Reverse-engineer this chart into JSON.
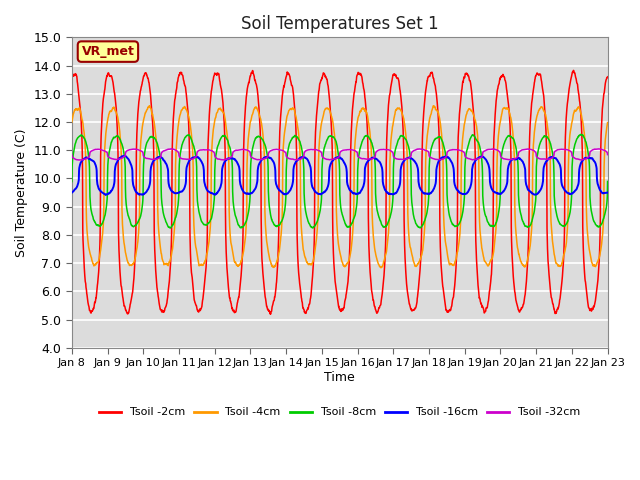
{
  "title": "Soil Temperatures Set 1",
  "xlabel": "Time",
  "ylabel": "Soil Temperature (C)",
  "ylim": [
    4.0,
    15.0
  ],
  "yticks": [
    4.0,
    5.0,
    6.0,
    7.0,
    8.0,
    9.0,
    10.0,
    11.0,
    12.0,
    13.0,
    14.0,
    15.0
  ],
  "xtick_labels": [
    "Jan 8",
    "Jan 9",
    "Jan 10",
    "Jan 11",
    "Jan 12",
    "Jan 13",
    "Jan 14",
    "Jan 15",
    "Jan 16",
    "Jan 17",
    "Jan 18",
    "Jan 19",
    "Jan 20",
    "Jan 21",
    "Jan 22",
    "Jan 23"
  ],
  "legend_labels": [
    "Tsoil -2cm",
    "Tsoil -4cm",
    "Tsoil -8cm",
    "Tsoil -16cm",
    "Tsoil -32cm"
  ],
  "legend_colors": [
    "#ff0000",
    "#ff9900",
    "#00cc00",
    "#0000ff",
    "#cc00cc"
  ],
  "vr_met_box_color": "#ffff99",
  "vr_met_text_color": "#990000",
  "background_color": "#ffffff",
  "plot_bg_color": "#dcdcdc",
  "grid_color": "#ffffff",
  "n_points": 2160,
  "n_days": 15
}
